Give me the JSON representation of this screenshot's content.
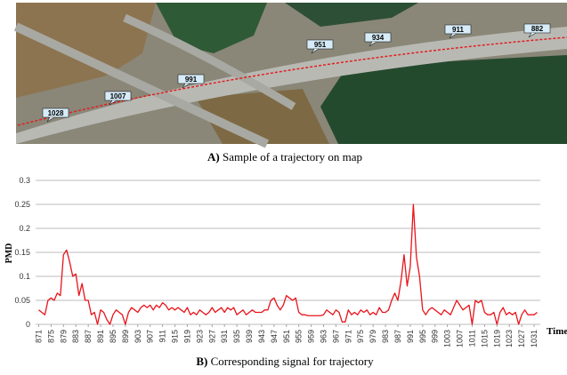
{
  "map": {
    "labels": [
      "882",
      "911",
      "934",
      "951",
      "991",
      "1007",
      "1028"
    ],
    "caption_label": "A)",
    "caption_text": "Sample of a trajectory on map"
  },
  "chart_data": {
    "type": "line",
    "y_label": "PMD",
    "x_label": "Time",
    "caption_label": "B)",
    "caption_text": "Corresponding signal for trajectory",
    "color": "#e8141b",
    "grid": true,
    "xlim": [
      870,
      1033
    ],
    "ylim": [
      0,
      0.3
    ],
    "yticks": [
      0,
      0.05,
      0.1,
      0.15,
      0.2,
      0.25,
      0.3
    ],
    "xticks": [
      871,
      875,
      879,
      883,
      887,
      891,
      895,
      899,
      903,
      907,
      911,
      915,
      919,
      923,
      927,
      931,
      935,
      939,
      943,
      947,
      951,
      955,
      959,
      963,
      967,
      971,
      975,
      979,
      983,
      987,
      991,
      995,
      999,
      1003,
      1007,
      1011,
      1015,
      1019,
      1023,
      1027,
      1031
    ],
    "x": [
      871,
      872,
      873,
      874,
      875,
      876,
      877,
      878,
      879,
      880,
      881,
      882,
      883,
      884,
      885,
      886,
      887,
      888,
      889,
      890,
      891,
      892,
      893,
      894,
      895,
      896,
      897,
      898,
      899,
      900,
      901,
      902,
      903,
      904,
      905,
      906,
      907,
      908,
      909,
      910,
      911,
      912,
      913,
      914,
      915,
      916,
      917,
      918,
      919,
      920,
      921,
      922,
      923,
      924,
      925,
      926,
      927,
      928,
      929,
      930,
      931,
      932,
      933,
      934,
      935,
      936,
      937,
      938,
      939,
      940,
      941,
      942,
      943,
      944,
      945,
      946,
      947,
      948,
      949,
      950,
      951,
      952,
      953,
      954,
      955,
      956,
      957,
      958,
      959,
      960,
      961,
      962,
      963,
      964,
      965,
      966,
      967,
      968,
      969,
      970,
      971,
      972,
      973,
      974,
      975,
      976,
      977,
      978,
      979,
      980,
      981,
      982,
      983,
      984,
      985,
      986,
      987,
      988,
      989,
      990,
      991,
      992,
      993,
      994,
      995,
      996,
      997,
      998,
      999,
      1000,
      1001,
      1002,
      1003,
      1004,
      1005,
      1006,
      1007,
      1008,
      1009,
      1010,
      1011,
      1012,
      1013,
      1014,
      1015,
      1016,
      1017,
      1018,
      1019,
      1020,
      1021,
      1022,
      1023,
      1024,
      1025,
      1026,
      1027,
      1028,
      1029,
      1030,
      1031,
      1032
    ],
    "values": [
      0.03,
      0.025,
      0.02,
      0.05,
      0.055,
      0.05,
      0.065,
      0.06,
      0.145,
      0.155,
      0.13,
      0.1,
      0.105,
      0.06,
      0.085,
      0.05,
      0.05,
      0.02,
      0.025,
      0.0,
      0.03,
      0.025,
      0.01,
      0.0,
      0.02,
      0.03,
      0.025,
      0.02,
      0.0,
      0.025,
      0.035,
      0.03,
      0.025,
      0.035,
      0.04,
      0.035,
      0.04,
      0.03,
      0.04,
      0.035,
      0.045,
      0.04,
      0.03,
      0.035,
      0.03,
      0.035,
      0.03,
      0.025,
      0.035,
      0.02,
      0.025,
      0.02,
      0.03,
      0.025,
      0.02,
      0.025,
      0.035,
      0.025,
      0.03,
      0.035,
      0.025,
      0.035,
      0.03,
      0.035,
      0.02,
      0.025,
      0.03,
      0.02,
      0.025,
      0.03,
      0.025,
      0.025,
      0.025,
      0.03,
      0.03,
      0.05,
      0.055,
      0.04,
      0.03,
      0.04,
      0.06,
      0.055,
      0.05,
      0.055,
      0.025,
      0.02,
      0.02,
      0.018,
      0.018,
      0.018,
      0.018,
      0.018,
      0.02,
      0.03,
      0.025,
      0.02,
      0.03,
      0.025,
      0.005,
      0.005,
      0.03,
      0.02,
      0.025,
      0.02,
      0.03,
      0.025,
      0.03,
      0.02,
      0.025,
      0.02,
      0.035,
      0.025,
      0.025,
      0.03,
      0.05,
      0.065,
      0.05,
      0.09,
      0.145,
      0.08,
      0.12,
      0.25,
      0.14,
      0.1,
      0.03,
      0.02,
      0.03,
      0.035,
      0.03,
      0.025,
      0.02,
      0.03,
      0.025,
      0.02,
      0.035,
      0.05,
      0.04,
      0.03,
      0.035,
      0.04,
      0.0,
      0.05,
      0.045,
      0.05,
      0.025,
      0.02,
      0.02,
      0.025,
      0.0,
      0.025,
      0.035,
      0.02,
      0.025,
      0.02,
      0.025,
      0.0,
      0.02,
      0.03,
      0.02,
      0.02,
      0.02,
      0.025
    ]
  }
}
